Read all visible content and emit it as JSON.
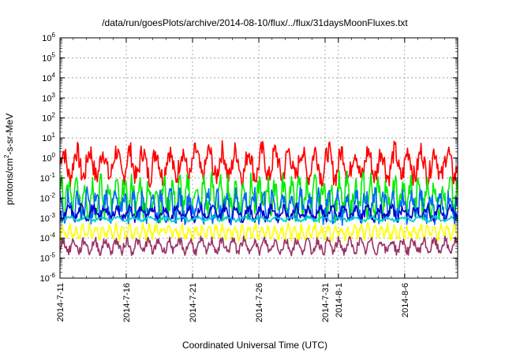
{
  "chart_data": {
    "type": "line",
    "title": "/data/run/goesPlots/archive/2014-08-10/flux/../flux/31daysMoonFluxes.txt",
    "xlabel": "Coordinated Universal Time (UTC)",
    "ylabel": "protons/cm²-s-sr-MeV",
    "yscale": "log",
    "ylim": [
      1e-06,
      1000000.0
    ],
    "xlim": [
      "2014-07-11",
      "2014-08-10"
    ],
    "grid": true,
    "legend": "none",
    "y_ticks": [
      "10-6",
      "10-5",
      "10-4",
      "10-3",
      "10-2",
      "10-1",
      "100",
      "101",
      "102",
      "103",
      "104",
      "105",
      "106"
    ],
    "x_ticks": [
      {
        "label": "2014-7-11",
        "day": 0
      },
      {
        "label": "2014-7-16",
        "day": 5
      },
      {
        "label": "2014-7-21",
        "day": 10
      },
      {
        "label": "2014-7-26",
        "day": 15
      },
      {
        "label": "2014-7-31",
        "day": 20
      },
      {
        "label": "2014-8-1",
        "day": 21
      },
      {
        "label": "2014-8-6",
        "day": 26
      }
    ],
    "series": [
      {
        "color": "#ff0000",
        "center": 0.5,
        "spread": 1.1,
        "period": 1.0
      },
      {
        "color": "#00ee00",
        "center": 0.012,
        "spread": 1.2,
        "period": 0.6
      },
      {
        "color": "#0066ff",
        "center": 0.004,
        "spread": 0.9,
        "period": 0.7
      },
      {
        "color": "#0000cc",
        "center": 0.0018,
        "spread": 0.45,
        "period": 0.9
      },
      {
        "color": "#00cccc",
        "center": 0.0009,
        "spread": 0.15,
        "period": 1.2
      },
      {
        "color": "#ffff00",
        "center": 0.0002,
        "spread": 0.45,
        "period": 0.5
      },
      {
        "color": "#993366",
        "center": 4e-05,
        "spread": 0.45,
        "period": 0.8
      }
    ]
  }
}
